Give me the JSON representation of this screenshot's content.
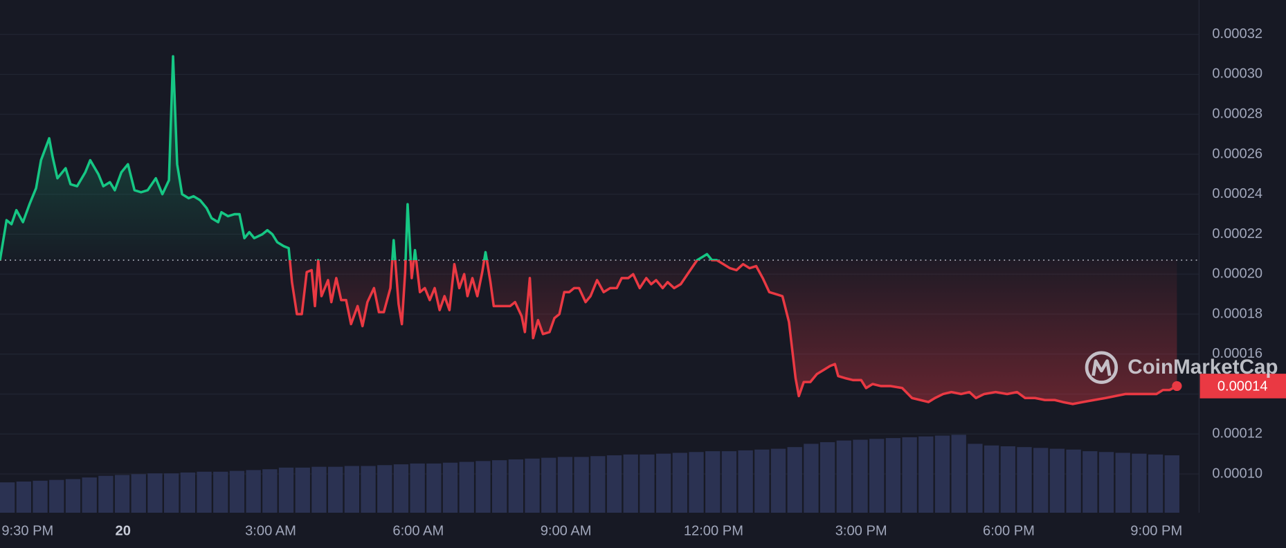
{
  "chart_data": {
    "type": "line",
    "x": [
      -150,
      -142,
      -136,
      -130,
      -122,
      -114,
      -106,
      -100,
      -90,
      -86,
      -80,
      -70,
      -64,
      -56,
      -46,
      -40,
      -30,
      -24,
      -16,
      -10,
      -2,
      6,
      14,
      22,
      30,
      40,
      48,
      56,
      61,
      66,
      72,
      80,
      86,
      94,
      102,
      108,
      116,
      120,
      128,
      136,
      142,
      148,
      154,
      160,
      170,
      176,
      182,
      188,
      196,
      202,
      206,
      212,
      218,
      224,
      230,
      234,
      238,
      242,
      250,
      254,
      260,
      266,
      272,
      278,
      286,
      292,
      298,
      306,
      312,
      318,
      326,
      330,
      336,
      340,
      344,
      347,
      352,
      356,
      362,
      368,
      374,
      380,
      386,
      392,
      398,
      404,
      410,
      416,
      420,
      426,
      432,
      438,
      442,
      448,
      452,
      462,
      472,
      478,
      486,
      490,
      496,
      500,
      506,
      512,
      520,
      526,
      532,
      538,
      544,
      550,
      556,
      564,
      570,
      578,
      586,
      594,
      602,
      608,
      616,
      622,
      630,
      638,
      644,
      650,
      658,
      664,
      672,
      680,
      690,
      700,
      708,
      712,
      718,
      724,
      732,
      740,
      748,
      756,
      764,
      772,
      780,
      788,
      796,
      804,
      812,
      820,
      824,
      830,
      838,
      846,
      854,
      862,
      868,
      872,
      880,
      890,
      900,
      906,
      914,
      924,
      936,
      950,
      962,
      972,
      982,
      990,
      1000,
      1010,
      1022,
      1032,
      1040,
      1050,
      1064,
      1078,
      1090,
      1100,
      1112,
      1124,
      1136,
      1146,
      1158,
      1170,
      1184,
      1198,
      1210,
      1222,
      1234,
      1248,
      1260,
      1268,
      1276,
      1285
    ],
    "values": [
      0.000207,
      0.000227,
      0.000225,
      0.000232,
      0.000226,
      0.000235,
      0.000243,
      0.000257,
      0.000268,
      0.000259,
      0.000248,
      0.000253,
      0.000245,
      0.000244,
      0.000251,
      0.000257,
      0.00025,
      0.000244,
      0.000246,
      0.000242,
      0.000251,
      0.000255,
      0.000242,
      0.000241,
      0.000242,
      0.000248,
      0.00024,
      0.000247,
      0.000309,
      0.000255,
      0.00024,
      0.000238,
      0.000239,
      0.000237,
      0.000233,
      0.000228,
      0.000226,
      0.000231,
      0.000229,
      0.00023,
      0.00023,
      0.000218,
      0.000221,
      0.000218,
      0.00022,
      0.000222,
      0.00022,
      0.000216,
      0.000214,
      0.000213,
      0.000196,
      0.00018,
      0.00018,
      0.000201,
      0.000202,
      0.000184,
      0.000207,
      0.000189,
      0.000197,
      0.000186,
      0.000198,
      0.000187,
      0.000187,
      0.000175,
      0.000184,
      0.000174,
      0.000186,
      0.000193,
      0.000181,
      0.000181,
      0.000193,
      0.000217,
      0.000185,
      0.000175,
      0.000201,
      0.000235,
      0.000198,
      0.000212,
      0.000191,
      0.000193,
      0.000187,
      0.000193,
      0.000182,
      0.000189,
      0.000182,
      0.000205,
      0.000193,
      0.0002,
      0.000189,
      0.000198,
      0.000189,
      0.000201,
      0.000211,
      0.000196,
      0.000184,
      0.000184,
      0.000184,
      0.000186,
      0.000179,
      0.000171,
      0.000198,
      0.000168,
      0.000177,
      0.00017,
      0.000171,
      0.000178,
      0.00018,
      0.000191,
      0.000191,
      0.000193,
      0.000193,
      0.000186,
      0.000189,
      0.000197,
      0.000191,
      0.000193,
      0.000193,
      0.000198,
      0.000198,
      0.0002,
      0.000193,
      0.000198,
      0.000195,
      0.000197,
      0.000193,
      0.000196,
      0.000193,
      0.000195,
      0.000201,
      0.000207,
      0.000209,
      0.00021,
      0.000207,
      0.000207,
      0.000205,
      0.000203,
      0.000202,
      0.000205,
      0.000203,
      0.000204,
      0.000198,
      0.000191,
      0.00019,
      0.000189,
      0.000176,
      0.000148,
      0.000139,
      0.000146,
      0.000146,
      0.00015,
      0.000152,
      0.000154,
      0.000155,
      0.000149,
      0.000148,
      0.000147,
      0.000147,
      0.000143,
      0.000145,
      0.000144,
      0.000144,
      0.000143,
      0.000138,
      0.000137,
      0.000136,
      0.000138,
      0.00014,
      0.000141,
      0.00014,
      0.000141,
      0.000138,
      0.00014,
      0.000141,
      0.00014,
      0.000141,
      0.000138,
      0.000138,
      0.000137,
      0.000137,
      0.000136,
      0.000135,
      0.000136,
      0.000137,
      0.000138,
      0.000139,
      0.00014,
      0.00014,
      0.00014,
      0.00014,
      0.000142,
      0.000142,
      0.000144
    ],
    "up_color": "#16c784",
    "down_color": "#ea3943",
    "baseline": 0.000207,
    "xlim": [
      -150,
      1312
    ],
    "xticks": [
      {
        "value": -150,
        "label": "9:30 PM"
      },
      {
        "value": 0,
        "label": "20"
      },
      {
        "value": 180,
        "label": "3:00 AM"
      },
      {
        "value": 360,
        "label": "6:00 AM"
      },
      {
        "value": 540,
        "label": "9:00 AM"
      },
      {
        "value": 720,
        "label": "12:00 PM"
      },
      {
        "value": 900,
        "label": "3:00 PM"
      },
      {
        "value": 1080,
        "label": "6:00 PM"
      },
      {
        "value": 1260,
        "label": "9:00 PM"
      }
    ],
    "ylim": [
      8.06e-05,
      0.0003372
    ],
    "yticks": [
      {
        "value": 0.0001,
        "label": "0.00010"
      },
      0.00012,
      0.00014,
      0.00016,
      0.00018,
      {
        "value": 0.0002,
        "label": "0.00020"
      },
      0.00022,
      0.00024,
      0.00026,
      0.00028,
      {
        "value": 0.0003,
        "label": "0.00030"
      },
      0.00032
    ],
    "grid": true,
    "volume": {
      "color": "#2b3252",
      "x": [
        -150,
        -130,
        -110,
        -90,
        -70,
        -50,
        -30,
        -10,
        10,
        30,
        50,
        70,
        90,
        110,
        130,
        150,
        170,
        190,
        210,
        230,
        250,
        270,
        290,
        310,
        330,
        350,
        370,
        390,
        410,
        430,
        450,
        470,
        490,
        510,
        530,
        550,
        570,
        590,
        610,
        630,
        650,
        670,
        690,
        710,
        730,
        750,
        770,
        790,
        810,
        830,
        850,
        870,
        890,
        910,
        930,
        950,
        970,
        990,
        1010,
        1030,
        1050,
        1070,
        1090,
        1110,
        1130,
        1150,
        1170,
        1190,
        1210,
        1230,
        1250,
        1270
      ],
      "values": [
        37,
        38,
        39,
        40,
        41,
        43,
        45,
        46,
        47,
        48,
        48,
        49,
        50,
        50,
        51,
        52,
        53,
        55,
        55,
        56,
        56,
        57,
        57,
        58,
        59,
        60,
        60,
        61,
        62,
        63,
        64,
        65,
        66,
        67,
        68,
        68,
        69,
        70,
        71,
        71,
        72,
        73,
        74,
        75,
        75,
        76,
        77,
        78,
        80,
        84,
        86,
        88,
        89,
        90,
        91,
        92,
        93,
        94,
        95,
        84,
        82,
        81,
        80,
        79,
        78,
        77,
        75,
        74,
        73,
        72,
        71,
        70
      ]
    },
    "y2lim": [
      0,
      100
    ],
    "current_price": {
      "value": 0.000144,
      "label": "0.00014"
    },
    "watermark": "CoinMarketCap"
  }
}
